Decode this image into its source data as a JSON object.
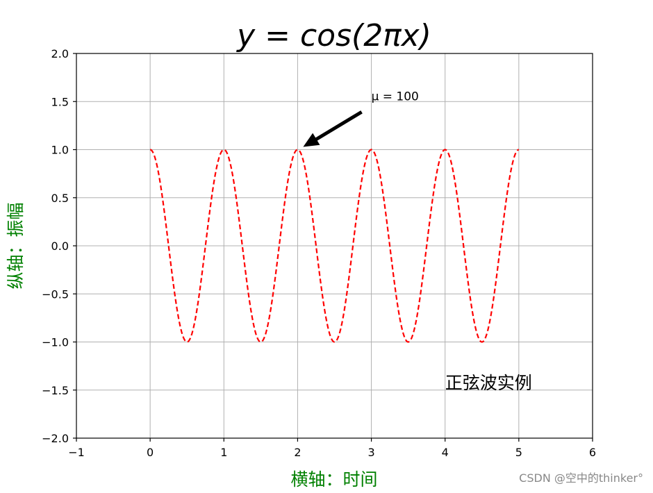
{
  "chart_data": {
    "type": "line",
    "title": "y = cos(2πx)",
    "xlabel": "横轴：时间",
    "ylabel": "纵轴：振幅",
    "xlim": [
      -1,
      6
    ],
    "ylim": [
      -2,
      2
    ],
    "xticks": [
      -1,
      0,
      1,
      2,
      3,
      4,
      5,
      6
    ],
    "yticks": [
      -2.0,
      -1.5,
      -1.0,
      -0.5,
      0.0,
      0.5,
      1.0,
      1.5,
      2.0
    ],
    "xtick_labels": [
      "−1",
      "0",
      "1",
      "2",
      "3",
      "4",
      "5",
      "6"
    ],
    "ytick_labels": [
      "−2.0",
      "−1.5",
      "−1.0",
      "−0.5",
      "0.0",
      "0.5",
      "1.0",
      "1.5",
      "2.0"
    ],
    "grid": true,
    "series": [
      {
        "function": "cos(2*pi*x)",
        "x_range": [
          0,
          5
        ],
        "color": "#ff0000",
        "linestyle": "dashed",
        "x": [
          0,
          0.5,
          1,
          1.5,
          2,
          2.5,
          3,
          3.5,
          4,
          4.5,
          5
        ],
        "y": [
          1,
          -1,
          1,
          -1,
          1,
          -1,
          1,
          -1,
          1,
          -1,
          1
        ]
      }
    ],
    "annotations": [
      {
        "text": "μ = 100",
        "xy": [
          2,
          1
        ],
        "xytext": [
          3,
          1.5
        ],
        "arrow": true
      },
      {
        "text": "正弦波实例",
        "xy": [
          4,
          -1.5
        ]
      }
    ],
    "label_color": "#008000"
  },
  "watermark": "CSDN @空中的thinker°"
}
